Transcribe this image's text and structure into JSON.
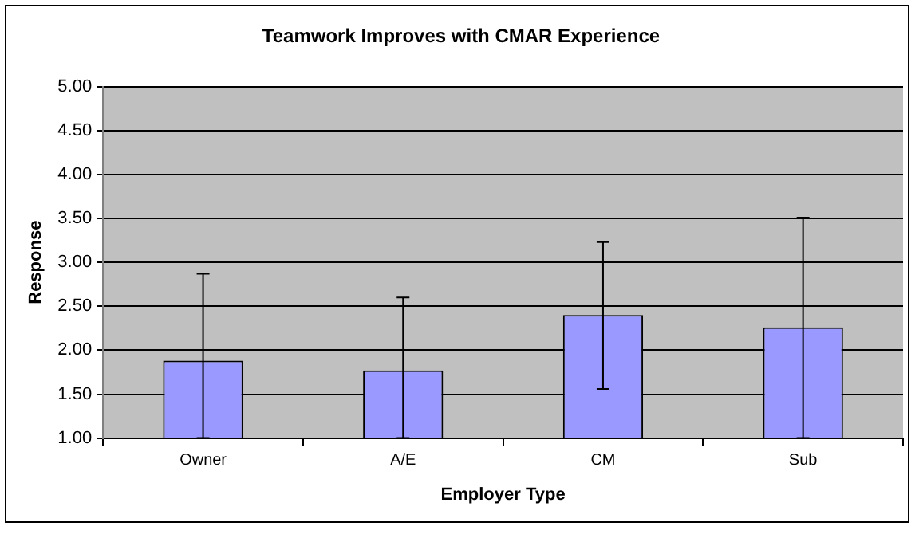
{
  "chart_data": {
    "type": "bar",
    "title": "Teamwork Improves with CMAR Experience",
    "xlabel": "Employer Type",
    "ylabel": "Response",
    "categories": [
      "Owner",
      "A/E",
      "CM",
      "Sub"
    ],
    "values": [
      1.88,
      1.77,
      2.4,
      2.26
    ],
    "errors": [
      [
        1.0,
        2.87
      ],
      [
        1.0,
        2.6
      ],
      [
        1.56,
        3.23
      ],
      [
        1.0,
        3.51
      ]
    ],
    "color": "#9999ff",
    "ylim": [
      1.0,
      5.0
    ],
    "yticks": [
      {
        "value": 1,
        "label": "1.00"
      },
      {
        "value": 1.5,
        "label": "1.50"
      },
      {
        "value": 2,
        "label": "2.00"
      },
      {
        "value": 2.5,
        "label": "2.50"
      },
      {
        "value": 3,
        "label": "3.00"
      },
      {
        "value": 3.5,
        "label": "3.50"
      },
      {
        "value": 4,
        "label": "4.00"
      },
      {
        "value": 4.5,
        "label": "4.50"
      },
      {
        "value": 5,
        "label": "5.00"
      }
    ],
    "grid": "y",
    "legend": false
  }
}
